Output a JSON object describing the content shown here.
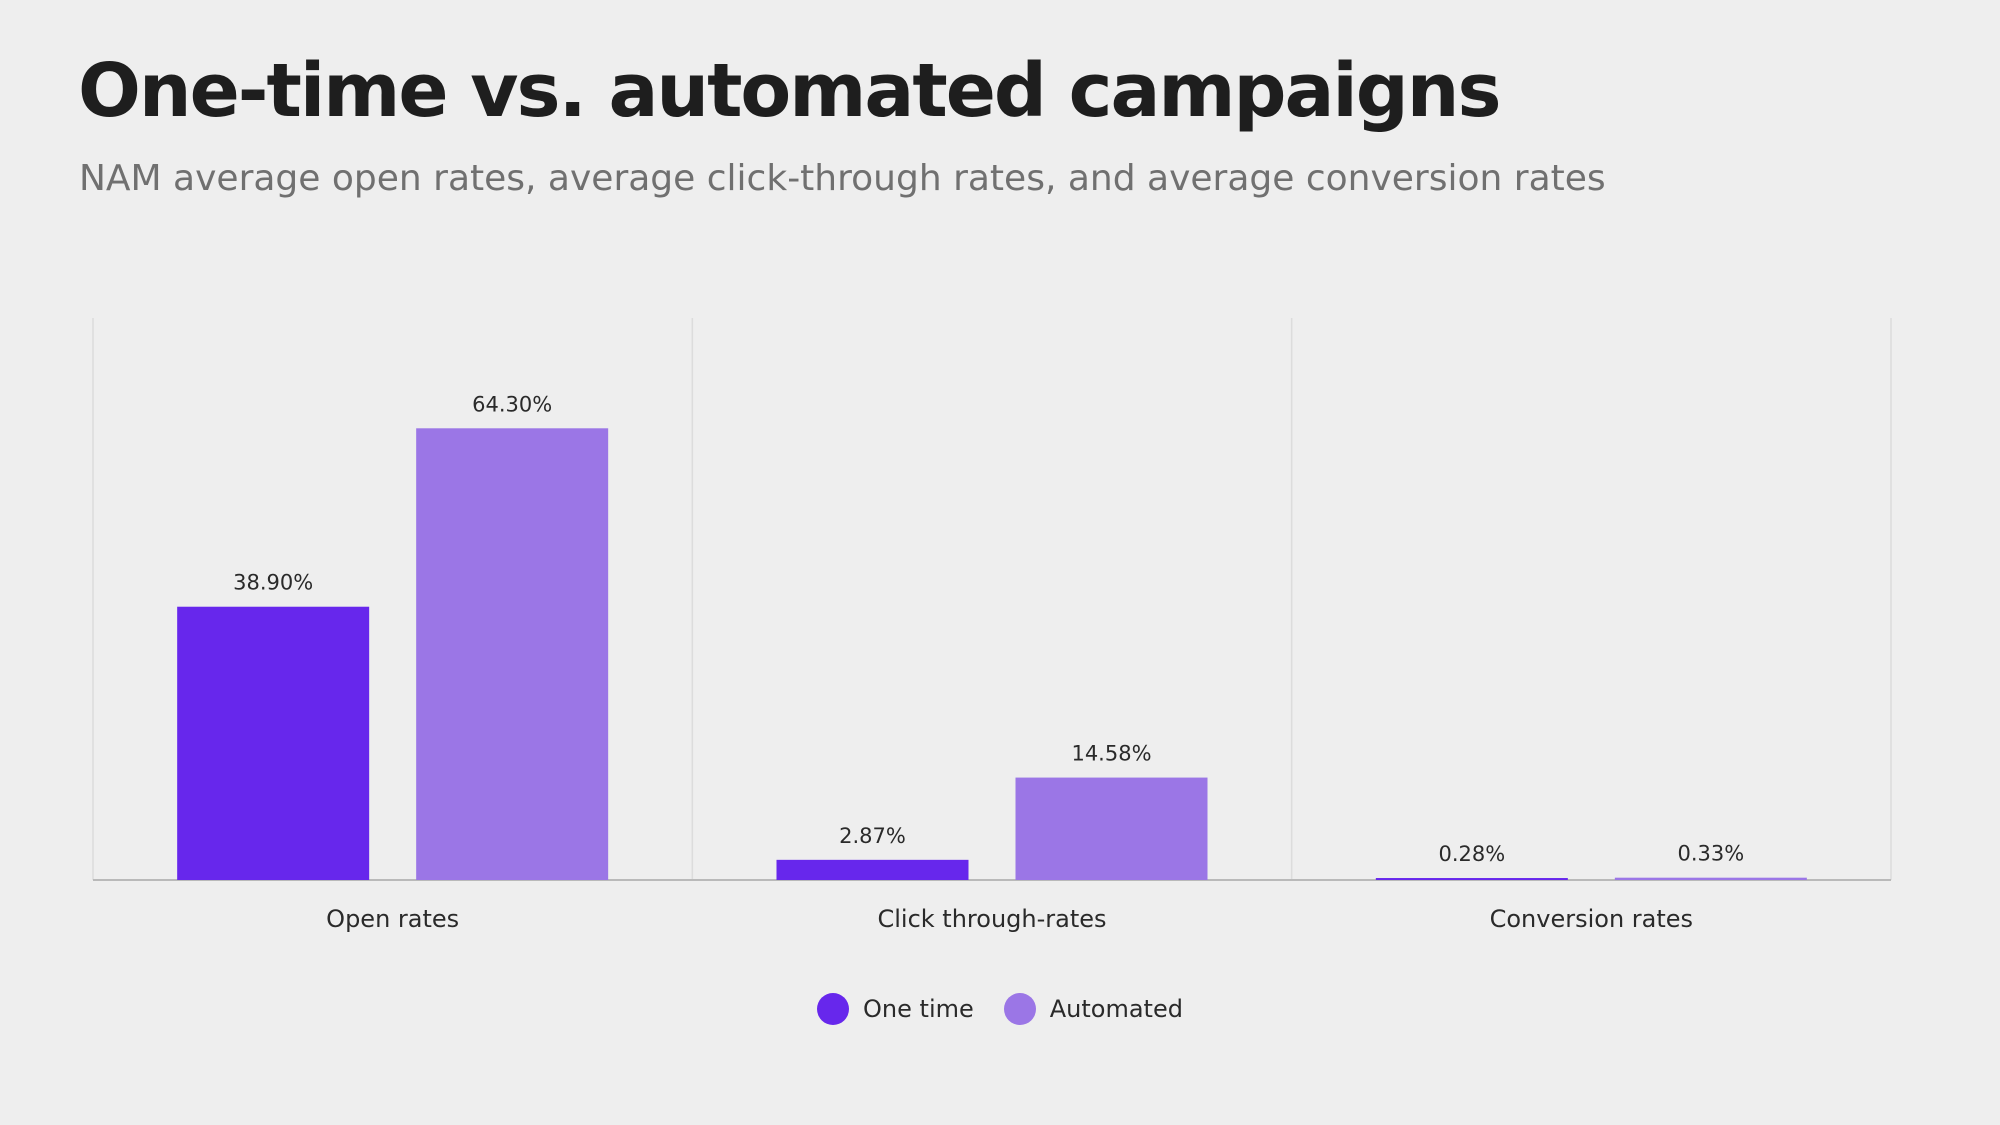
{
  "header": {
    "title": "One-time vs. automated campaigns",
    "subtitle": "NAM average open rates, average click-through rates, and average conversion rates"
  },
  "chart_data": {
    "type": "bar",
    "categories": [
      "Open rates",
      "Click through-rates",
      "Conversion rates"
    ],
    "series": [
      {
        "name": "One time",
        "values": [
          38.9,
          2.87,
          0.28
        ],
        "labels": [
          "38.90%",
          "2.87%",
          "0.28%"
        ],
        "color": "#6727ec"
      },
      {
        "name": "Automated",
        "values": [
          64.3,
          14.58,
          0.33
        ],
        "labels": [
          "64.30%",
          "14.58%",
          "0.33%"
        ],
        "color": "#9b76e6"
      }
    ],
    "ylim": [
      0,
      80
    ],
    "grid": "vertical separators between categories",
    "legend": "bottom-center"
  }
}
